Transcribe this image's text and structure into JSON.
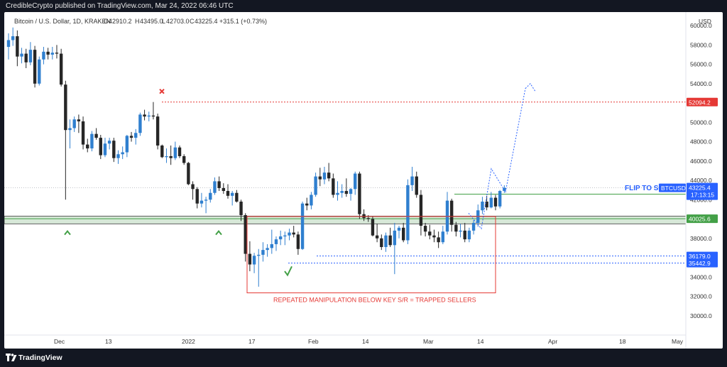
{
  "header": {
    "publisher_line": "CredibleCrypto published on TradingView.com, Mar 24, 2022 06:46 UTC"
  },
  "symbol_line": {
    "name": "Bitcoin / U.S. Dollar, 1D, KRAKEN",
    "open_label": "O",
    "open": "42910.2",
    "high_label": "H",
    "high": "43495.0",
    "low_label": "L",
    "low": "42703.0",
    "close_label": "C",
    "close": "43225.4",
    "change": "+315.1 (+0.73%)"
  },
  "footer": {
    "brand": "TradingView"
  },
  "colors": {
    "up": "#2f7fcf",
    "down": "#262626",
    "red": "#e53935",
    "green": "#43a047",
    "blue_label": "#2962ff",
    "zone_fill": "#d7e8d8"
  },
  "chart_data": {
    "type": "candlestick",
    "currency": "USD",
    "y_ticks": [
      "60000.0",
      "58000.0",
      "56000.0",
      "54000.0",
      "52000.0",
      "50000.0",
      "48000.0",
      "46000.0",
      "44000.0",
      "42000.0",
      "40000.0",
      "38000.0",
      "36000.0",
      "34000.0",
      "32000.0",
      "30000.0"
    ],
    "x_ticks": [
      "Dec",
      "13",
      "2022",
      "17",
      "Feb",
      "14",
      "Mar",
      "14",
      "Apr",
      "18",
      "May"
    ],
    "ylim": [
      28000,
      61400
    ],
    "candles": [
      {
        "o": 57800,
        "h": 59200,
        "l": 56500,
        "c": 58500
      },
      {
        "o": 58500,
        "h": 59800,
        "l": 57900,
        "c": 58900
      },
      {
        "o": 58900,
        "h": 59500,
        "l": 55800,
        "c": 56800
      },
      {
        "o": 56800,
        "h": 57700,
        "l": 56100,
        "c": 57100
      },
      {
        "o": 57100,
        "h": 57600,
        "l": 55600,
        "c": 56200
      },
      {
        "o": 56200,
        "h": 58300,
        "l": 55900,
        "c": 57500
      },
      {
        "o": 57500,
        "h": 57900,
        "l": 53600,
        "c": 54000
      },
      {
        "o": 54000,
        "h": 56800,
        "l": 53800,
        "c": 56500
      },
      {
        "o": 56500,
        "h": 57800,
        "l": 56000,
        "c": 57300
      },
      {
        "o": 57300,
        "h": 57700,
        "l": 56500,
        "c": 57000
      },
      {
        "o": 57000,
        "h": 57800,
        "l": 56500,
        "c": 57200
      },
      {
        "o": 57200,
        "h": 58000,
        "l": 56600,
        "c": 57100
      },
      {
        "o": 57100,
        "h": 57600,
        "l": 53700,
        "c": 53900
      },
      {
        "o": 53900,
        "h": 54300,
        "l": 42000,
        "c": 49200
      },
      {
        "o": 49200,
        "h": 50300,
        "l": 47300,
        "c": 49400
      },
      {
        "o": 49400,
        "h": 50600,
        "l": 49000,
        "c": 50300
      },
      {
        "o": 50300,
        "h": 50800,
        "l": 48900,
        "c": 50100
      },
      {
        "o": 50100,
        "h": 50600,
        "l": 47200,
        "c": 47700
      },
      {
        "o": 47700,
        "h": 48300,
        "l": 46900,
        "c": 47300
      },
      {
        "o": 47300,
        "h": 49100,
        "l": 47000,
        "c": 48800
      },
      {
        "o": 48800,
        "h": 49400,
        "l": 48200,
        "c": 48400
      },
      {
        "o": 48400,
        "h": 48700,
        "l": 46200,
        "c": 46600
      },
      {
        "o": 46600,
        "h": 48400,
        "l": 46400,
        "c": 47800
      },
      {
        "o": 47800,
        "h": 48400,
        "l": 47200,
        "c": 48100
      },
      {
        "o": 48100,
        "h": 48400,
        "l": 45900,
        "c": 46300
      },
      {
        "o": 46300,
        "h": 47100,
        "l": 45700,
        "c": 46700
      },
      {
        "o": 46700,
        "h": 47500,
        "l": 46200,
        "c": 46900
      },
      {
        "o": 46900,
        "h": 48700,
        "l": 46400,
        "c": 48600
      },
      {
        "o": 48600,
        "h": 49000,
        "l": 48000,
        "c": 48400
      },
      {
        "o": 48400,
        "h": 49300,
        "l": 47700,
        "c": 48900
      },
      {
        "o": 48900,
        "h": 51000,
        "l": 48600,
        "c": 50800
      },
      {
        "o": 50800,
        "h": 51300,
        "l": 50200,
        "c": 50600
      },
      {
        "o": 50600,
        "h": 51100,
        "l": 50100,
        "c": 50700
      },
      {
        "o": 50700,
        "h": 52100,
        "l": 50300,
        "c": 50600
      },
      {
        "o": 50600,
        "h": 50900,
        "l": 47200,
        "c": 47600
      },
      {
        "o": 47600,
        "h": 47700,
        "l": 46300,
        "c": 46400
      },
      {
        "o": 46400,
        "h": 47300,
        "l": 45800,
        "c": 46500
      },
      {
        "o": 46500,
        "h": 47600,
        "l": 45600,
        "c": 46300
      },
      {
        "o": 46300,
        "h": 48000,
        "l": 46100,
        "c": 47400
      },
      {
        "o": 47400,
        "h": 47600,
        "l": 46300,
        "c": 46500
      },
      {
        "o": 46500,
        "h": 46700,
        "l": 45600,
        "c": 45800
      },
      {
        "o": 45800,
        "h": 45900,
        "l": 43500,
        "c": 43600
      },
      {
        "o": 43600,
        "h": 43900,
        "l": 42000,
        "c": 43100
      },
      {
        "o": 43100,
        "h": 43300,
        "l": 41100,
        "c": 41600
      },
      {
        "o": 41600,
        "h": 42700,
        "l": 41200,
        "c": 41900
      },
      {
        "o": 41900,
        "h": 42300,
        "l": 40600,
        "c": 42000
      },
      {
        "o": 42000,
        "h": 43100,
        "l": 41700,
        "c": 42700
      },
      {
        "o": 42700,
        "h": 44300,
        "l": 42500,
        "c": 43900
      },
      {
        "o": 43900,
        "h": 44400,
        "l": 42900,
        "c": 43200
      },
      {
        "o": 43200,
        "h": 43700,
        "l": 42600,
        "c": 42900
      },
      {
        "o": 42900,
        "h": 43600,
        "l": 42100,
        "c": 42400
      },
      {
        "o": 42400,
        "h": 42900,
        "l": 41400,
        "c": 42700
      },
      {
        "o": 42700,
        "h": 43000,
        "l": 41700,
        "c": 41800
      },
      {
        "o": 41800,
        "h": 42000,
        "l": 39800,
        "c": 40400
      },
      {
        "o": 40400,
        "h": 40600,
        "l": 35600,
        "c": 36400
      },
      {
        "o": 36400,
        "h": 37700,
        "l": 34600,
        "c": 35300
      },
      {
        "o": 35300,
        "h": 36500,
        "l": 34400,
        "c": 36200
      },
      {
        "o": 36200,
        "h": 36900,
        "l": 33000,
        "c": 36300
      },
      {
        "o": 36300,
        "h": 37600,
        "l": 35600,
        "c": 36800
      },
      {
        "o": 36800,
        "h": 37400,
        "l": 36100,
        "c": 37000
      },
      {
        "o": 37000,
        "h": 38900,
        "l": 36400,
        "c": 37400
      },
      {
        "o": 37400,
        "h": 38200,
        "l": 36700,
        "c": 37900
      },
      {
        "o": 37900,
        "h": 38800,
        "l": 37300,
        "c": 38200
      },
      {
        "o": 38200,
        "h": 38700,
        "l": 37300,
        "c": 38300
      },
      {
        "o": 38300,
        "h": 39000,
        "l": 37800,
        "c": 38600
      },
      {
        "o": 38600,
        "h": 39300,
        "l": 38100,
        "c": 38400
      },
      {
        "o": 38400,
        "h": 38700,
        "l": 36300,
        "c": 36900
      },
      {
        "o": 36900,
        "h": 41800,
        "l": 36800,
        "c": 41600
      },
      {
        "o": 41600,
        "h": 42200,
        "l": 40900,
        "c": 41400
      },
      {
        "o": 41400,
        "h": 42800,
        "l": 41000,
        "c": 42500
      },
      {
        "o": 42500,
        "h": 44800,
        "l": 42300,
        "c": 44400
      },
      {
        "o": 44400,
        "h": 45300,
        "l": 43400,
        "c": 44100
      },
      {
        "o": 44100,
        "h": 45400,
        "l": 43600,
        "c": 44800
      },
      {
        "o": 44800,
        "h": 45800,
        "l": 43900,
        "c": 44200
      },
      {
        "o": 44200,
        "h": 44700,
        "l": 42200,
        "c": 42500
      },
      {
        "o": 42500,
        "h": 43900,
        "l": 41900,
        "c": 42700
      },
      {
        "o": 42700,
        "h": 43600,
        "l": 42200,
        "c": 42900
      },
      {
        "o": 42900,
        "h": 44200,
        "l": 42300,
        "c": 42600
      },
      {
        "o": 42600,
        "h": 43200,
        "l": 41900,
        "c": 43100
      },
      {
        "o": 43100,
        "h": 44900,
        "l": 42500,
        "c": 44700
      },
      {
        "o": 44700,
        "h": 44900,
        "l": 40000,
        "c": 40500
      },
      {
        "o": 40500,
        "h": 41000,
        "l": 39800,
        "c": 40100
      },
      {
        "o": 40100,
        "h": 40400,
        "l": 39700,
        "c": 40000
      },
      {
        "o": 40000,
        "h": 40300,
        "l": 38200,
        "c": 38300
      },
      {
        "o": 38300,
        "h": 39500,
        "l": 37600,
        "c": 38000
      },
      {
        "o": 38000,
        "h": 38400,
        "l": 36800,
        "c": 37100
      },
      {
        "o": 37100,
        "h": 38600,
        "l": 36600,
        "c": 38300
      },
      {
        "o": 38300,
        "h": 39100,
        "l": 37100,
        "c": 37300
      },
      {
        "o": 37300,
        "h": 39600,
        "l": 34300,
        "c": 38800
      },
      {
        "o": 38800,
        "h": 39300,
        "l": 38000,
        "c": 39100
      },
      {
        "o": 39100,
        "h": 39600,
        "l": 37600,
        "c": 37800
      },
      {
        "o": 37800,
        "h": 44100,
        "l": 37400,
        "c": 43500
      },
      {
        "o": 43500,
        "h": 45400,
        "l": 42900,
        "c": 44400
      },
      {
        "o": 44400,
        "h": 44900,
        "l": 42200,
        "c": 42500
      },
      {
        "o": 42500,
        "h": 43000,
        "l": 38300,
        "c": 39300
      },
      {
        "o": 39300,
        "h": 39600,
        "l": 38200,
        "c": 38700
      },
      {
        "o": 38700,
        "h": 39400,
        "l": 37900,
        "c": 38300
      },
      {
        "o": 38300,
        "h": 38900,
        "l": 37600,
        "c": 38100
      },
      {
        "o": 38100,
        "h": 38700,
        "l": 37000,
        "c": 37600
      },
      {
        "o": 37600,
        "h": 39300,
        "l": 37400,
        "c": 38700
      },
      {
        "o": 38700,
        "h": 42800,
        "l": 38400,
        "c": 41900
      },
      {
        "o": 41900,
        "h": 42100,
        "l": 38700,
        "c": 39400
      },
      {
        "o": 39400,
        "h": 39700,
        "l": 38200,
        "c": 38700
      },
      {
        "o": 38700,
        "h": 39500,
        "l": 38100,
        "c": 38800
      },
      {
        "o": 38800,
        "h": 39600,
        "l": 37600,
        "c": 37900
      },
      {
        "o": 37900,
        "h": 39100,
        "l": 37600,
        "c": 38800
      },
      {
        "o": 38800,
        "h": 39900,
        "l": 38400,
        "c": 39600
      },
      {
        "o": 39600,
        "h": 41500,
        "l": 39200,
        "c": 40900
      },
      {
        "o": 40900,
        "h": 42300,
        "l": 40500,
        "c": 41800
      },
      {
        "o": 41800,
        "h": 42400,
        "l": 40900,
        "c": 41200
      },
      {
        "o": 41200,
        "h": 42800,
        "l": 41100,
        "c": 42200
      },
      {
        "o": 42200,
        "h": 42500,
        "l": 40900,
        "c": 41300
      },
      {
        "o": 41300,
        "h": 43000,
        "l": 41100,
        "c": 42900
      },
      {
        "o": 42910,
        "h": 43495,
        "l": 42703,
        "c": 43225
      }
    ],
    "horizontal_levels": [
      {
        "price": 52094.2,
        "label": "52094.2",
        "color": "#e53935",
        "style": "dotted"
      },
      {
        "price": 42569.0,
        "label": "42569.0",
        "color": "#43a047",
        "style": "solid"
      },
      {
        "price": 40025.6,
        "label": "40025.6",
        "color": "#43a047",
        "style": "solid"
      },
      {
        "price": 36179.0,
        "label": "36179.0",
        "color": "#2962ff",
        "style": "dotted"
      },
      {
        "price": 35442.9,
        "label": "35442.9",
        "color": "#2962ff",
        "style": "dotted"
      }
    ],
    "support_zone": [
      39500,
      40300
    ],
    "last_price": {
      "price": 43225.4,
      "label": "43225.4",
      "countdown": "17:13:15",
      "ticker": "BTCUSD"
    },
    "projected_path": [
      [
        43225,
        42800
      ],
      [
        44600,
        45200
      ],
      [
        45500,
        53500
      ]
    ],
    "annotations": {
      "flip_text": "FLIP TO S",
      "box_caption": "REPEATED MANIPULATION BELOW KEY S/R = TRAPPED SELLERS"
    }
  }
}
